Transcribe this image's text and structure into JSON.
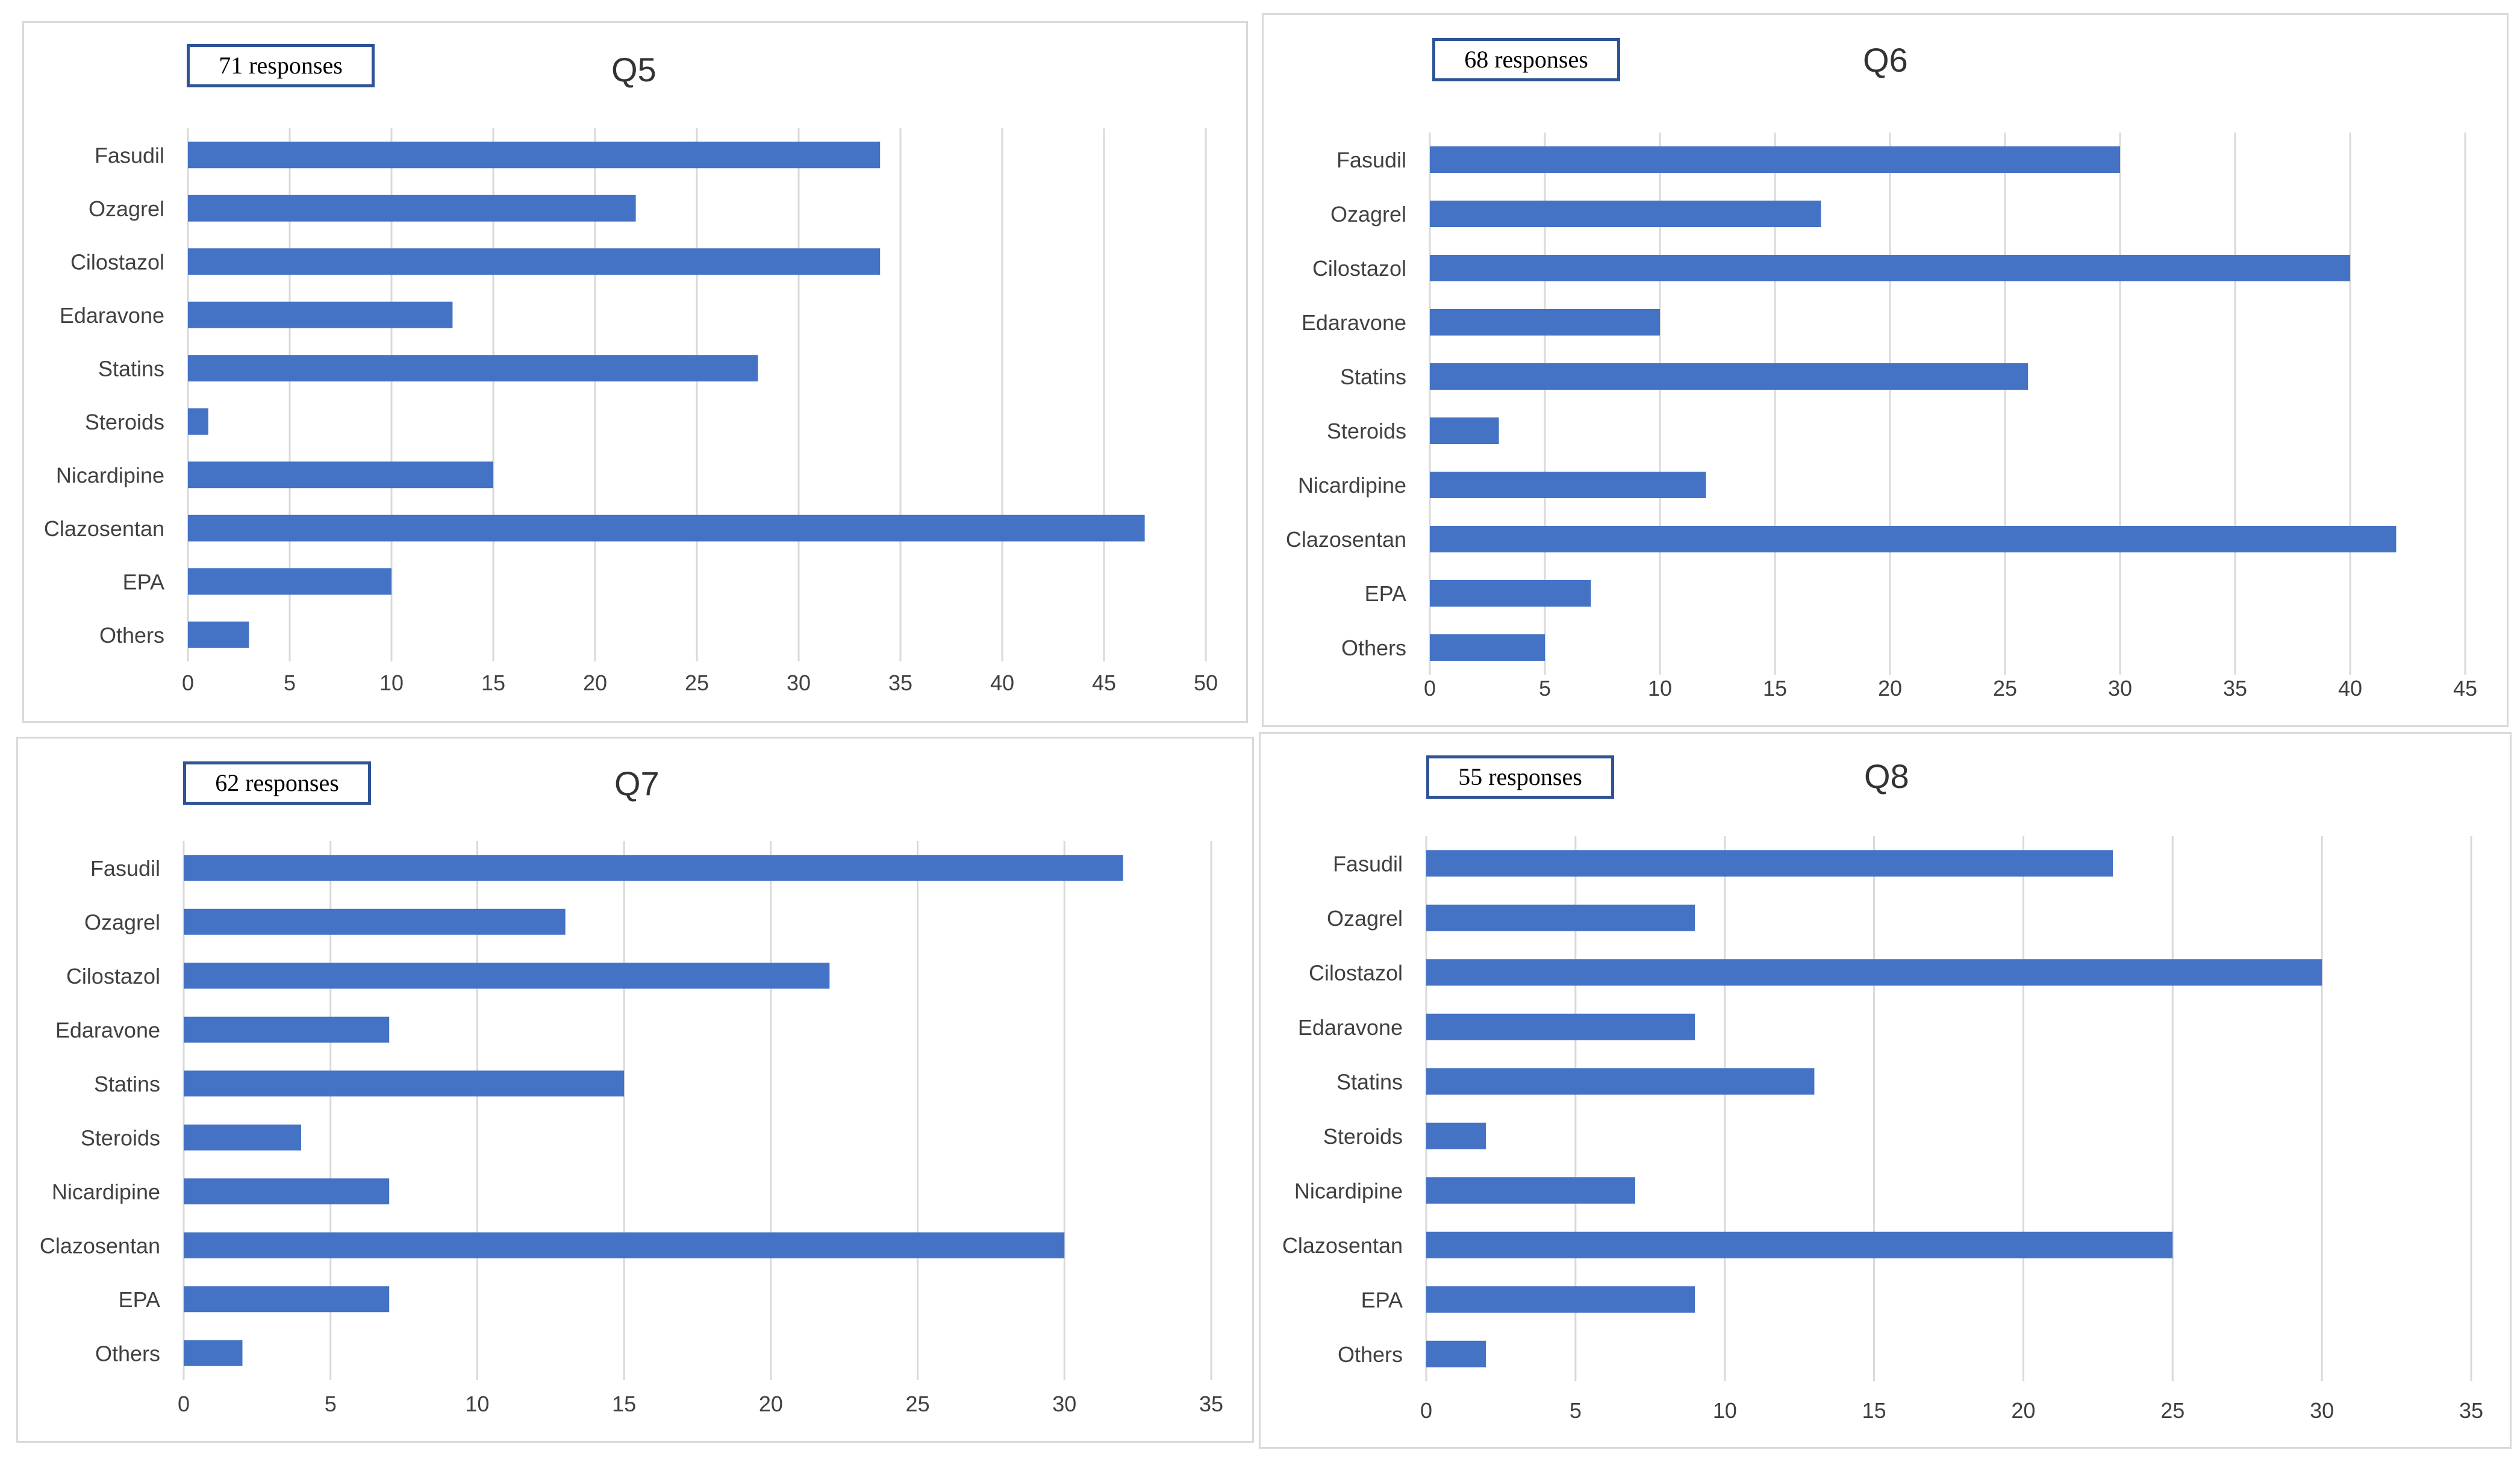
{
  "colors": {
    "bar": "#4472c4",
    "badge_border": "#2f5496",
    "grid": "#d9d9d9",
    "text": "#404040"
  },
  "chart_data": [
    {
      "type": "bar",
      "orientation": "horizontal",
      "title": "Q5",
      "responses_label": "71 responses",
      "categories": [
        "Fasudil",
        "Ozagrel",
        "Cilostazol",
        "Edaravone",
        "Statins",
        "Steroids",
        "Nicardipine",
        "Clazosentan",
        "EPA",
        "Others"
      ],
      "values": [
        34,
        22,
        34,
        13,
        28,
        1,
        15,
        47,
        10,
        3
      ],
      "xlim": [
        0,
        50
      ],
      "xticks": [
        0,
        5,
        10,
        15,
        20,
        25,
        30,
        35,
        40,
        45,
        50
      ],
      "xlabel": "",
      "ylabel": "",
      "grid": true,
      "legend": "none"
    },
    {
      "type": "bar",
      "orientation": "horizontal",
      "title": "Q6",
      "responses_label": "68 responses",
      "categories": [
        "Fasudil",
        "Ozagrel",
        "Cilostazol",
        "Edaravone",
        "Statins",
        "Steroids",
        "Nicardipine",
        "Clazosentan",
        "EPA",
        "Others"
      ],
      "values": [
        30,
        17,
        40,
        10,
        26,
        3,
        12,
        42,
        7,
        5
      ],
      "xlim": [
        0,
        45
      ],
      "xticks": [
        0,
        5,
        10,
        15,
        20,
        25,
        30,
        35,
        40,
        45
      ],
      "xlabel": "",
      "ylabel": "",
      "grid": true,
      "legend": "none"
    },
    {
      "type": "bar",
      "orientation": "horizontal",
      "title": "Q7",
      "responses_label": "62 responses",
      "categories": [
        "Fasudil",
        "Ozagrel",
        "Cilostazol",
        "Edaravone",
        "Statins",
        "Steroids",
        "Nicardipine",
        "Clazosentan",
        "EPA",
        "Others"
      ],
      "values": [
        32,
        13,
        22,
        7,
        15,
        4,
        7,
        30,
        7,
        2
      ],
      "xlim": [
        0,
        35
      ],
      "xticks": [
        0,
        5,
        10,
        15,
        20,
        25,
        30,
        35
      ],
      "xlabel": "",
      "ylabel": "",
      "grid": true,
      "legend": "none"
    },
    {
      "type": "bar",
      "orientation": "horizontal",
      "title": "Q8",
      "responses_label": "55 responses",
      "categories": [
        "Fasudil",
        "Ozagrel",
        "Cilostazol",
        "Edaravone",
        "Statins",
        "Steroids",
        "Nicardipine",
        "Clazosentan",
        "EPA",
        "Others"
      ],
      "values": [
        23,
        9,
        30,
        9,
        13,
        2,
        7,
        25,
        9,
        2
      ],
      "xlim": [
        0,
        35
      ],
      "xticks": [
        0,
        5,
        10,
        15,
        20,
        25,
        30,
        35
      ],
      "xlabel": "",
      "ylabel": "",
      "grid": true,
      "legend": "none"
    }
  ]
}
